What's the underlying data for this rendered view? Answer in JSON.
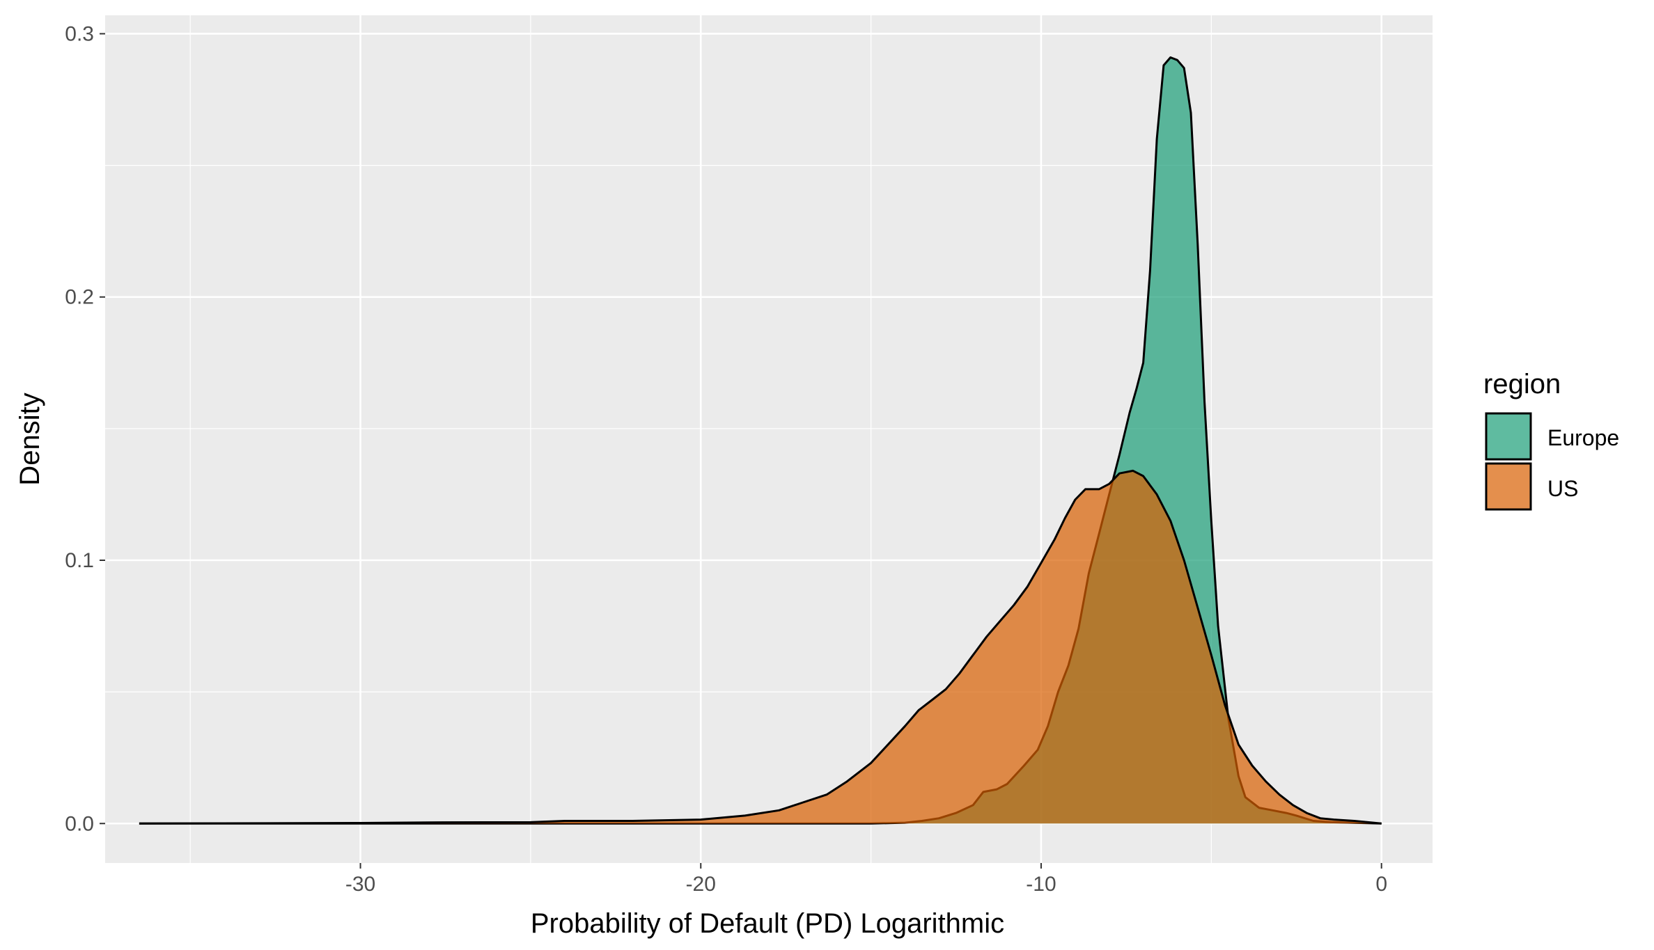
{
  "chart_data": {
    "type": "area",
    "subtype": "density",
    "xlabel": "Probability of Default (PD) Logarithmic",
    "ylabel": "Density",
    "xlim": [
      -37.5,
      1.5
    ],
    "ylim": [
      -0.015,
      0.307
    ],
    "x_ticks": [
      -30,
      -20,
      -10,
      0
    ],
    "y_ticks": [
      0.0,
      0.1,
      0.2,
      0.3
    ],
    "x_tick_labels": [
      "-30",
      "-20",
      "-10",
      "0"
    ],
    "y_tick_labels": [
      "0.0",
      "0.1",
      "0.2",
      "0.3"
    ],
    "grid": true,
    "panel_background": "#ebebeb",
    "grid_color": "#ffffff",
    "legend": {
      "title": "region",
      "position": "right",
      "entries": [
        "Europe",
        "US"
      ]
    },
    "series": [
      {
        "name": "Europe",
        "color": "#1b9e77",
        "points": [
          [
            -36.5,
            0
          ],
          [
            -25,
            0
          ],
          [
            -20,
            0
          ],
          [
            -15,
            0
          ],
          [
            -14,
            0.0003
          ],
          [
            -13.5,
            0.001
          ],
          [
            -13,
            0.002
          ],
          [
            -12.5,
            0.004
          ],
          [
            -12,
            0.007
          ],
          [
            -11.7,
            0.012
          ],
          [
            -11.3,
            0.013
          ],
          [
            -11,
            0.015
          ],
          [
            -10.5,
            0.022
          ],
          [
            -10.1,
            0.028
          ],
          [
            -9.8,
            0.037
          ],
          [
            -9.5,
            0.05
          ],
          [
            -9.2,
            0.06
          ],
          [
            -8.9,
            0.074
          ],
          [
            -8.6,
            0.095
          ],
          [
            -8.3,
            0.11
          ],
          [
            -8.0,
            0.125
          ],
          [
            -7.7,
            0.14
          ],
          [
            -7.4,
            0.156
          ],
          [
            -7.2,
            0.165
          ],
          [
            -7.0,
            0.175
          ],
          [
            -6.8,
            0.21
          ],
          [
            -6.6,
            0.26
          ],
          [
            -6.4,
            0.288
          ],
          [
            -6.2,
            0.291
          ],
          [
            -6.0,
            0.29
          ],
          [
            -5.8,
            0.287
          ],
          [
            -5.6,
            0.27
          ],
          [
            -5.4,
            0.22
          ],
          [
            -5.2,
            0.16
          ],
          [
            -5.0,
            0.115
          ],
          [
            -4.8,
            0.075
          ],
          [
            -4.5,
            0.04
          ],
          [
            -4.2,
            0.018
          ],
          [
            -4.0,
            0.01
          ],
          [
            -3.6,
            0.006
          ],
          [
            -3.2,
            0.005
          ],
          [
            -2.8,
            0.004
          ],
          [
            -2.5,
            0.003
          ],
          [
            -2.0,
            0.001
          ],
          [
            -1.5,
            0.0005
          ],
          [
            0,
            0
          ]
        ]
      },
      {
        "name": "US",
        "color": "#d95f02",
        "points": [
          [
            -36.5,
            0
          ],
          [
            -30,
            0.0002
          ],
          [
            -28,
            0.0004
          ],
          [
            -25,
            0.0005
          ],
          [
            -24,
            0.001
          ],
          [
            -22,
            0.001
          ],
          [
            -20,
            0.0015
          ],
          [
            -18.7,
            0.003
          ],
          [
            -17.7,
            0.005
          ],
          [
            -17,
            0.008
          ],
          [
            -16.3,
            0.011
          ],
          [
            -15.7,
            0.016
          ],
          [
            -15,
            0.023
          ],
          [
            -14.5,
            0.03
          ],
          [
            -14,
            0.037
          ],
          [
            -13.6,
            0.043
          ],
          [
            -13.2,
            0.047
          ],
          [
            -12.8,
            0.051
          ],
          [
            -12.4,
            0.057
          ],
          [
            -12,
            0.064
          ],
          [
            -11.6,
            0.071
          ],
          [
            -11.2,
            0.077
          ],
          [
            -10.8,
            0.083
          ],
          [
            -10.4,
            0.09
          ],
          [
            -10,
            0.099
          ],
          [
            -9.6,
            0.108
          ],
          [
            -9.3,
            0.116
          ],
          [
            -9.0,
            0.123
          ],
          [
            -8.7,
            0.127
          ],
          [
            -8.3,
            0.127
          ],
          [
            -8.0,
            0.129
          ],
          [
            -7.7,
            0.133
          ],
          [
            -7.3,
            0.134
          ],
          [
            -7.0,
            0.132
          ],
          [
            -6.6,
            0.125
          ],
          [
            -6.2,
            0.115
          ],
          [
            -5.8,
            0.1
          ],
          [
            -5.4,
            0.082
          ],
          [
            -5.0,
            0.064
          ],
          [
            -4.6,
            0.045
          ],
          [
            -4.2,
            0.03
          ],
          [
            -3.8,
            0.022
          ],
          [
            -3.4,
            0.016
          ],
          [
            -3.0,
            0.011
          ],
          [
            -2.6,
            0.007
          ],
          [
            -2.2,
            0.004
          ],
          [
            -1.8,
            0.002
          ],
          [
            -1.4,
            0.0015
          ],
          [
            -0.8,
            0.001
          ],
          [
            0,
            0
          ]
        ]
      }
    ]
  }
}
